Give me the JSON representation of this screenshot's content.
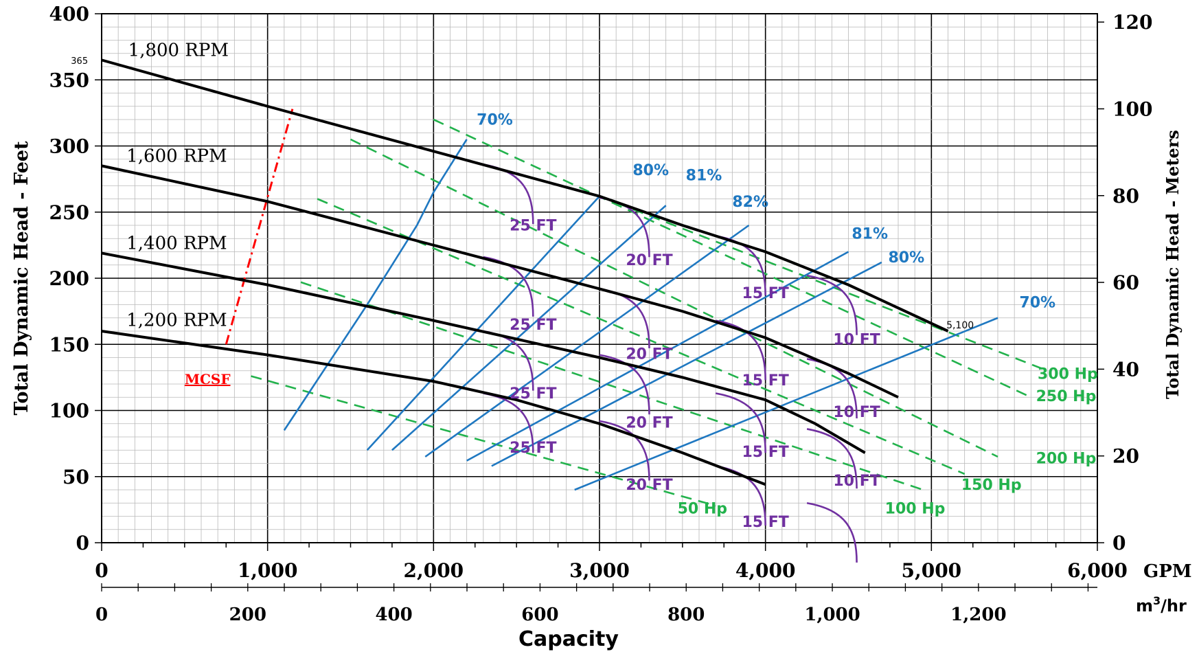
{
  "chart_data": {
    "type": "line",
    "title": "",
    "xlabel": "Capacity",
    "ylabel_left": "Total Dynamic Head - Feet",
    "ylabel_right": "Total Dynamic Head - Meters",
    "x_unit_primary": "GPM",
    "x_unit_secondary_base": "m",
    "x_unit_secondary_exp": "3",
    "x_unit_secondary_tail": "/hr",
    "xlim": [
      0,
      6000
    ],
    "ylim": [
      0,
      400
    ],
    "x_ticks": [
      0,
      1000,
      2000,
      3000,
      4000,
      5000,
      6000
    ],
    "x_tick_labels": [
      "0",
      "1,000",
      "2,000",
      "3,000",
      "4,000",
      "5,000",
      "6,000"
    ],
    "x2_ticks": [
      0,
      200,
      400,
      600,
      800,
      1000,
      1200
    ],
    "x2_tick_labels": [
      "0",
      "200",
      "400",
      "600",
      "800",
      "1,000",
      "1,200"
    ],
    "y_ticks": [
      0,
      50,
      100,
      150,
      200,
      250,
      300,
      350,
      400
    ],
    "y_tick_labels": [
      "0",
      "50",
      "100",
      "150",
      "200",
      "250",
      "300",
      "350",
      "400"
    ],
    "y2_ticks": [
      0,
      20,
      40,
      60,
      80,
      100,
      120
    ],
    "y2_tick_labels": [
      "0",
      "20",
      "40",
      "60",
      "80",
      "100",
      "120"
    ],
    "grid": true,
    "annotations": {
      "shutoff_head": "365",
      "end_flow": "5,100",
      "mcsf": "MCSF"
    },
    "colors": {
      "rpm": "#000000",
      "efficiency": "#1f78c1",
      "npsh": "#7030a0",
      "hp": "#22b24c",
      "mcsf": "#ff0000"
    },
    "rpm_curves": [
      {
        "name": "1,800 RPM",
        "x": [
          0,
          1000,
          2000,
          3000,
          3500,
          4000,
          4500,
          5100
        ],
        "y": [
          365,
          330,
          296,
          262,
          240,
          220,
          195,
          160
        ]
      },
      {
        "name": "1,600 RPM",
        "x": [
          0,
          1000,
          2000,
          3000,
          3500,
          4000,
          4500,
          4800
        ],
        "y": [
          285,
          258,
          225,
          192,
          175,
          155,
          128,
          110
        ]
      },
      {
        "name": "1,400 RPM",
        "x": [
          0,
          1000,
          2000,
          3000,
          3500,
          4000,
          4300,
          4600
        ],
        "y": [
          219,
          195,
          168,
          140,
          125,
          108,
          90,
          68
        ]
      },
      {
        "name": "1,200 RPM",
        "x": [
          0,
          1000,
          2000,
          2500,
          3000,
          3500,
          4000
        ],
        "y": [
          160,
          142,
          122,
          108,
          90,
          68,
          44
        ]
      }
    ],
    "efficiency_lines": [
      {
        "name": "70%",
        "x": [
          1100,
          1600,
          1900,
          2000,
          2200
        ],
        "y": [
          85,
          180,
          240,
          265,
          305
        ]
      },
      {
        "name": "80%",
        "x": [
          1600,
          3000
        ],
        "y": [
          70,
          262
        ]
      },
      {
        "name": "81%",
        "x": [
          1750,
          3400
        ],
        "y": [
          70,
          255
        ]
      },
      {
        "name": "82%",
        "x": [
          1950,
          3900
        ],
        "y": [
          65,
          240
        ]
      },
      {
        "name": "81%",
        "x": [
          2200,
          4500
        ],
        "y": [
          62,
          220
        ]
      },
      {
        "name": "80%",
        "x": [
          2350,
          4700
        ],
        "y": [
          58,
          212
        ]
      },
      {
        "name": "70%",
        "x": [
          2850,
          5400
        ],
        "y": [
          40,
          170
        ]
      }
    ],
    "efficiency_label_positions": [
      [
        2260,
        316
      ],
      [
        3200,
        278
      ],
      [
        3520,
        274
      ],
      [
        3800,
        254
      ],
      [
        4520,
        230
      ],
      [
        4740,
        212
      ],
      [
        5530,
        178
      ]
    ],
    "npsh_curves": [
      {
        "name": "25 FT",
        "x": 2600,
        "curves": [
          [
            2300,
            286
          ],
          [
            2300,
            216
          ],
          [
            2300,
            160
          ],
          [
            2300,
            113
          ]
        ]
      },
      {
        "name": "20 FT",
        "x": 3300,
        "curves": [
          [
            3000,
            261
          ],
          [
            3000,
            192
          ],
          [
            3000,
            142
          ],
          [
            3000,
            92
          ]
        ]
      },
      {
        "name": "15 FT",
        "x": 4000,
        "curves": [
          [
            3700,
            232
          ],
          [
            3700,
            168
          ],
          [
            3700,
            113
          ],
          [
            3700,
            58
          ]
        ]
      },
      {
        "name": "10 FT",
        "x": 4550,
        "curves": [
          [
            4250,
            202
          ],
          [
            4250,
            139
          ],
          [
            4250,
            86
          ],
          [
            4250,
            30
          ]
        ]
      }
    ],
    "npsh_label_positions": [
      [
        2600,
        236
      ],
      [
        3300,
        210
      ],
      [
        4000,
        185
      ],
      [
        4550,
        150
      ],
      [
        2600,
        161
      ],
      [
        3300,
        139
      ],
      [
        4000,
        119
      ],
      [
        4550,
        95
      ],
      [
        2600,
        109
      ],
      [
        3300,
        87
      ],
      [
        4000,
        65
      ],
      [
        4550,
        43
      ],
      [
        2600,
        68
      ],
      [
        3300,
        40
      ],
      [
        4000,
        12
      ]
    ],
    "hp_lines": [
      {
        "name": "50 Hp",
        "x": [
          900,
          3700
        ],
        "y": [
          126,
          28
        ]
      },
      {
        "name": "100 Hp",
        "x": [
          1200,
          4950
        ],
        "y": [
          197,
          40
        ]
      },
      {
        "name": "150 Hp",
        "x": [
          1300,
          5200
        ],
        "y": [
          260,
          52
        ]
      },
      {
        "name": "200 Hp",
        "x": [
          1500,
          5400
        ],
        "y": [
          305,
          65
        ]
      },
      {
        "name": "250 Hp",
        "x": [
          2000,
          5600
        ],
        "y": [
          320,
          110
        ]
      },
      {
        "name": "300 Hp",
        "x": [
          3000,
          5700
        ],
        "y": [
          262,
          130
        ]
      }
    ],
    "hp_label_positions": [
      [
        3470,
        22
      ],
      [
        4720,
        22
      ],
      [
        5180,
        40
      ],
      [
        5630,
        60
      ],
      [
        5630,
        107
      ],
      [
        5640,
        124
      ]
    ],
    "mcsf_line": {
      "x": [
        750,
        1150
      ],
      "y": [
        150,
        328
      ]
    },
    "rpm_label_positions": [
      [
        160,
        368
      ],
      [
        150,
        288
      ],
      [
        150,
        222
      ],
      [
        150,
        164
      ]
    ]
  }
}
